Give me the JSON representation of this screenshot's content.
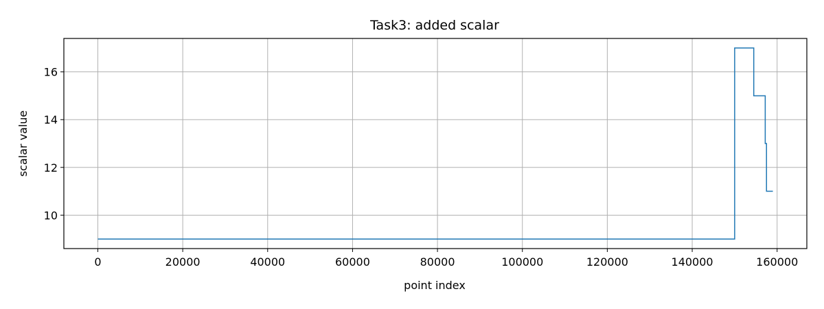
{
  "chart_data": {
    "type": "line",
    "title": "Task3: added scalar",
    "xlabel": "point index",
    "ylabel": "scalar value",
    "xlim": [
      -8000,
      167000
    ],
    "ylim": [
      8.6,
      17.4
    ],
    "x_ticks": [
      0,
      20000,
      40000,
      60000,
      80000,
      100000,
      120000,
      140000,
      160000
    ],
    "y_ticks": [
      10,
      12,
      14,
      16
    ],
    "grid": true,
    "line_color": "#1f77b4",
    "step": "pre",
    "series": [
      {
        "x": [
          0,
          150000,
          150000,
          154500,
          154500,
          157200,
          157200,
          157500,
          157500,
          159000
        ],
        "y": [
          9,
          9,
          17,
          17,
          15,
          15,
          13,
          13,
          11,
          11
        ]
      }
    ]
  }
}
